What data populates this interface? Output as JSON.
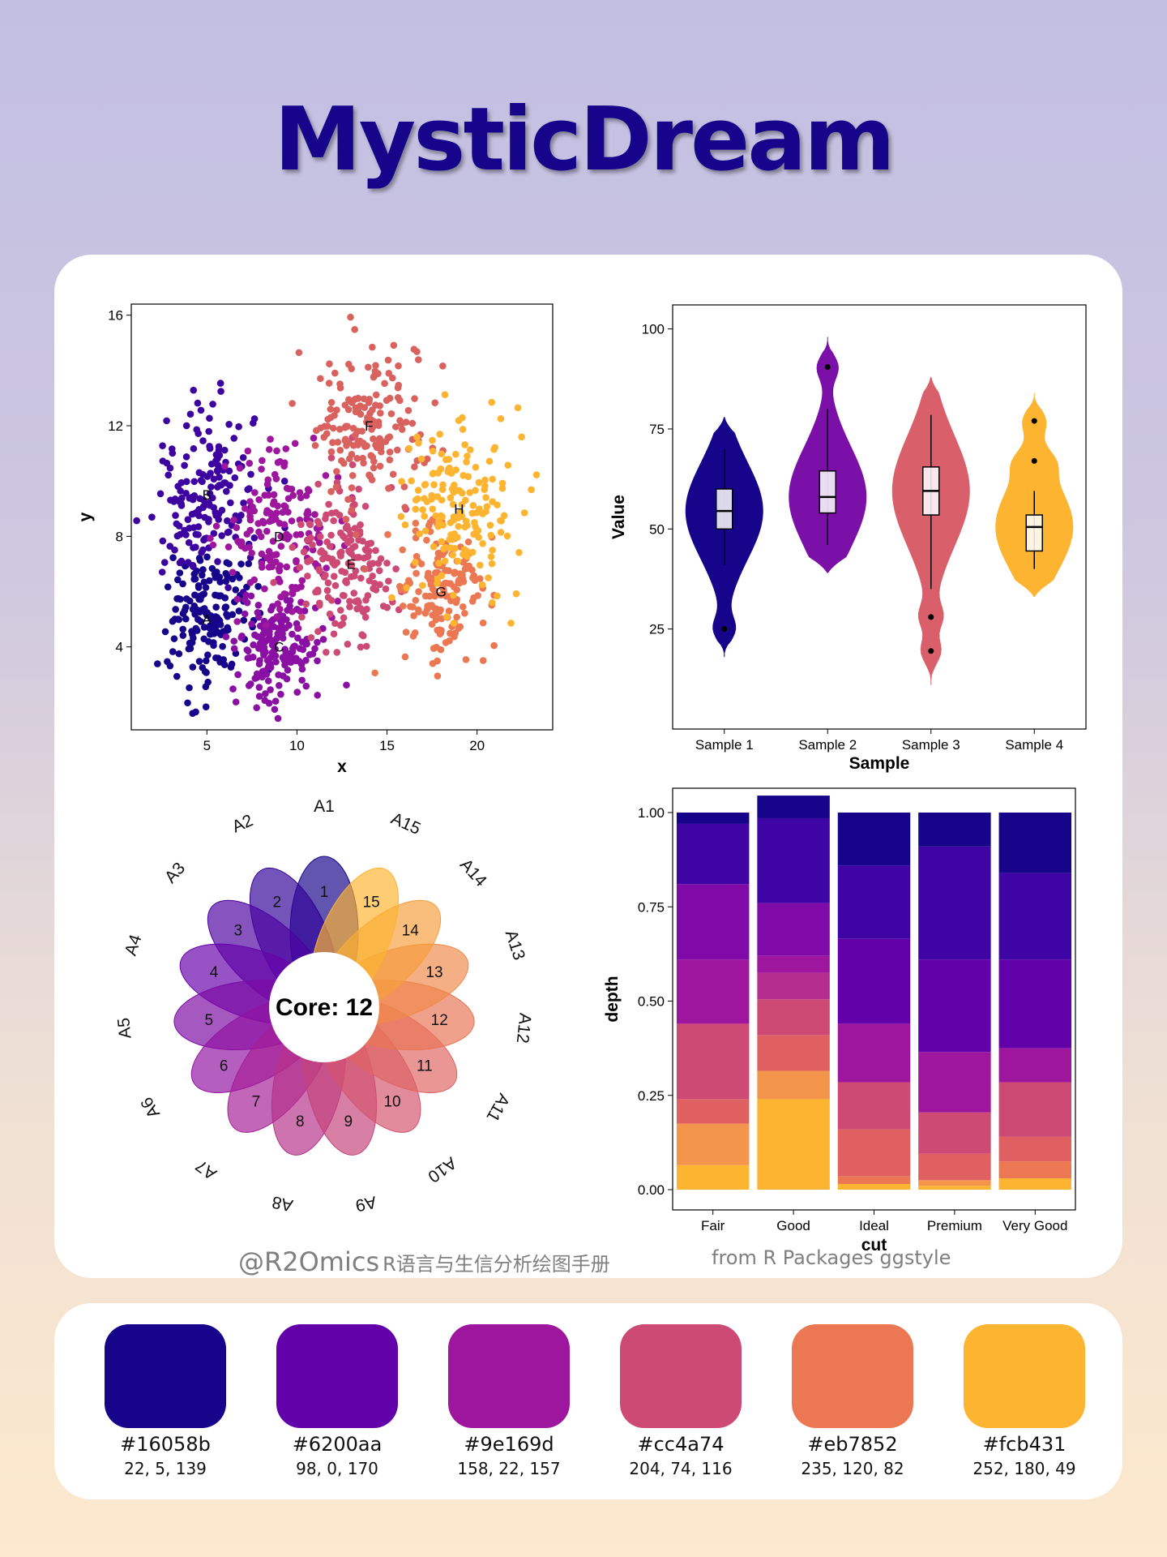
{
  "title": "MysticDream",
  "credit": {
    "handle": "@R2Omics",
    "subtitle": "R语言与生信分析绘图手册",
    "from": "from  R Packages ggstyle"
  },
  "palette": [
    {
      "hex": "#16058b",
      "rgb": "22, 5, 139"
    },
    {
      "hex": "#6200aa",
      "rgb": "98, 0, 170"
    },
    {
      "hex": "#9e169d",
      "rgb": "158, 22, 157"
    },
    {
      "hex": "#cc4a74",
      "rgb": "204, 74, 116"
    },
    {
      "hex": "#eb7852",
      "rgb": "235, 120, 82"
    },
    {
      "hex": "#fcb431",
      "rgb": "252, 180, 49"
    }
  ],
  "chart_data": [
    {
      "type": "scatter",
      "xlabel": "x",
      "ylabel": "y",
      "xlim": [
        0.8,
        24.2
      ],
      "ylim": [
        1.0,
        16.4
      ],
      "xticks": [
        5,
        10,
        15,
        20
      ],
      "yticks": [
        4,
        8,
        12,
        16
      ],
      "clusters": [
        {
          "label": "A",
          "cx": 5.0,
          "cy": 5.0,
          "sx": 1.1,
          "sy": 1.2,
          "n": 170,
          "color": "#16058b"
        },
        {
          "label": "B",
          "cx": 5.0,
          "cy": 9.5,
          "sx": 1.4,
          "sy": 1.6,
          "n": 170,
          "color": "#3d02a0"
        },
        {
          "label": "C",
          "cx": 9.0,
          "cy": 4.0,
          "sx": 1.2,
          "sy": 1.0,
          "n": 170,
          "color": "#8a0fa3"
        },
        {
          "label": "D",
          "cx": 9.0,
          "cy": 8.0,
          "sx": 1.6,
          "sy": 1.5,
          "n": 170,
          "color": "#9e169d"
        },
        {
          "label": "E",
          "cx": 13.0,
          "cy": 7.0,
          "sx": 1.5,
          "sy": 1.5,
          "n": 170,
          "color": "#cc4a74"
        },
        {
          "label": "F",
          "cx": 14.0,
          "cy": 12.0,
          "sx": 1.5,
          "sy": 1.6,
          "n": 170,
          "color": "#d9625f"
        },
        {
          "label": "G",
          "cx": 18.0,
          "cy": 6.0,
          "sx": 1.3,
          "sy": 1.2,
          "n": 170,
          "color": "#eb7852"
        },
        {
          "label": "H",
          "cx": 19.0,
          "cy": 9.0,
          "sx": 1.6,
          "sy": 1.5,
          "n": 170,
          "color": "#fcb431"
        }
      ]
    },
    {
      "type": "violin",
      "xlabel": "Sample",
      "ylabel": "Value",
      "ylim": [
        0,
        106
      ],
      "yticks": [
        25,
        50,
        75,
        100
      ],
      "categories": [
        "Sample 1",
        "Sample 2",
        "Sample 3",
        "Sample 4"
      ],
      "colors": [
        "#16058b",
        "#7a10a8",
        "#d9606a",
        "#fcb431"
      ],
      "box": [
        {
          "min": 41,
          "q1": 50,
          "median": 54.5,
          "q3": 60,
          "max": 70,
          "outliers": [
            25
          ]
        },
        {
          "min": 46,
          "q1": 54,
          "median": 58,
          "q3": 64.5,
          "max": 80,
          "outliers": [
            90.5
          ]
        },
        {
          "min": 35,
          "q1": 53.5,
          "median": 59.5,
          "q3": 65.5,
          "max": 78.5,
          "outliers": [
            28,
            19.5
          ]
        },
        {
          "min": 40,
          "q1": 44.5,
          "median": 50.5,
          "q3": 53.5,
          "max": 59.5,
          "outliers": [
            67,
            77
          ]
        }
      ],
      "range": [
        [
          18,
          78
        ],
        [
          39,
          98
        ],
        [
          11,
          88
        ],
        [
          33,
          84
        ]
      ]
    },
    {
      "type": "flower",
      "center_label": "Core: 12",
      "petals": [
        {
          "name": "A1",
          "value": 1
        },
        {
          "name": "A2",
          "value": 2
        },
        {
          "name": "A3",
          "value": 3
        },
        {
          "name": "A4",
          "value": 4
        },
        {
          "name": "A5",
          "value": 5
        },
        {
          "name": "A6",
          "value": 6
        },
        {
          "name": "A7",
          "value": 7
        },
        {
          "name": "A8",
          "value": 8
        },
        {
          "name": "A9",
          "value": 9
        },
        {
          "name": "A10",
          "value": 10
        },
        {
          "name": "A11",
          "value": 11
        },
        {
          "name": "A12",
          "value": 12
        },
        {
          "name": "A13",
          "value": 13
        },
        {
          "name": "A14",
          "value": 14
        },
        {
          "name": "A15",
          "value": 15
        }
      ]
    },
    {
      "type": "bar",
      "stacked": "fill",
      "xlabel": "cut",
      "ylabel": "depth",
      "ylim": [
        0,
        1
      ],
      "yticks": [
        "0.00",
        "0.25",
        "0.50",
        "0.75",
        "1.00"
      ],
      "categories": [
        "Fair",
        "Good",
        "Ideal",
        "Premium",
        "Very Good"
      ],
      "colors": [
        "#fcb431",
        "#f3954a",
        "#eb7852",
        "#e06062",
        "#cc4a74",
        "#b52e8f",
        "#9e169d",
        "#7f0aa7",
        "#6200aa",
        "#3f04a4",
        "#16058b"
      ],
      "series": [
        {
          "values": [
            0.065,
            0.24,
            0.015,
            0.01,
            0.03
          ]
        },
        {
          "values": [
            0.11,
            0.075,
            0.0,
            0.015,
            0.0
          ]
        },
        {
          "values": [
            0.0,
            0.0,
            0.02,
            0.0,
            0.045
          ]
        },
        {
          "values": [
            0.065,
            0.095,
            0.125,
            0.07,
            0.065
          ]
        },
        {
          "values": [
            0.2,
            0.095,
            0.125,
            0.11,
            0.145
          ]
        },
        {
          "values": [
            0.0,
            0.07,
            0.0,
            0.0,
            0.0
          ]
        },
        {
          "values": [
            0.17,
            0.045,
            0.155,
            0.16,
            0.09
          ]
        },
        {
          "values": [
            0.2,
            0.14,
            0.0,
            0.0,
            0.0
          ]
        },
        {
          "values": [
            0.0,
            0.0,
            0.225,
            0.245,
            0.235
          ]
        },
        {
          "values": [
            0.16,
            0.225,
            0.195,
            0.3,
            0.23
          ]
        },
        {
          "values": [
            0.03,
            0.06,
            0.14,
            0.09,
            0.16
          ]
        }
      ]
    }
  ]
}
